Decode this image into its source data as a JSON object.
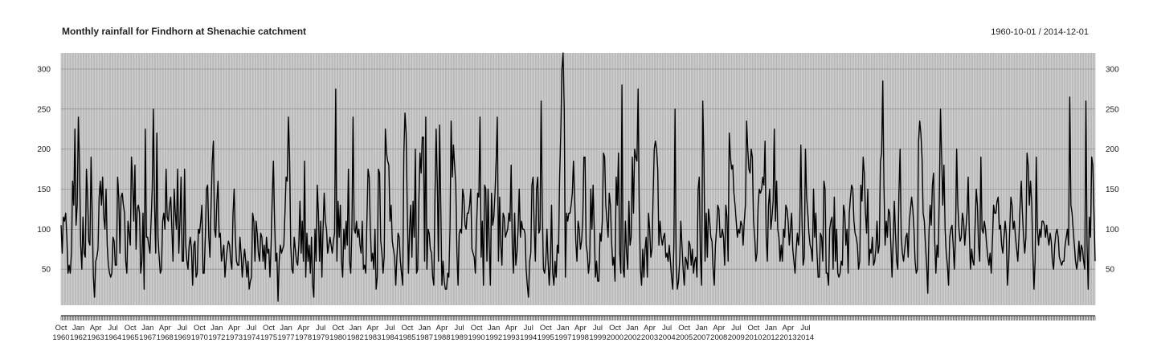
{
  "chart_data": {
    "type": "line",
    "title": "Monthly rainfall for Findhorn at Shenachie catchment",
    "date_range_label": "1960-10-01 / 2014-12-01",
    "xlabel": "",
    "ylabel": "",
    "x_start": "1960-10",
    "x_end": "2014-12",
    "ylim": [
      5,
      320
    ],
    "y_ticks": [
      50,
      100,
      150,
      200,
      250,
      300
    ],
    "x_ticks": [
      [
        "Oct",
        "1960"
      ],
      [
        "Jan",
        "1962"
      ],
      [
        "Apr",
        "1963"
      ],
      [
        "Jul",
        "1964"
      ],
      [
        "Oct",
        "1965"
      ],
      [
        "Jan",
        "1967"
      ],
      [
        "Apr",
        "1968"
      ],
      [
        "Jul",
        "1969"
      ],
      [
        "Oct",
        "1970"
      ],
      [
        "Jan",
        "1972"
      ],
      [
        "Apr",
        "1973"
      ],
      [
        "Jul",
        "1974"
      ],
      [
        "Oct",
        "1975"
      ],
      [
        "Jan",
        "1977"
      ],
      [
        "Apr",
        "1978"
      ],
      [
        "Jul",
        "1979"
      ],
      [
        "Oct",
        "1980"
      ],
      [
        "Jan",
        "1982"
      ],
      [
        "Apr",
        "1983"
      ],
      [
        "Jul",
        "1984"
      ],
      [
        "Oct",
        "1985"
      ],
      [
        "Jan",
        "1987"
      ],
      [
        "Apr",
        "1988"
      ],
      [
        "Jul",
        "1989"
      ],
      [
        "Oct",
        "1990"
      ],
      [
        "Jan",
        "1992"
      ],
      [
        "Apr",
        "1993"
      ],
      [
        "Jul",
        "1994"
      ],
      [
        "Oct",
        "1995"
      ],
      [
        "Jan",
        "1997"
      ],
      [
        "Apr",
        "1998"
      ],
      [
        "Jul",
        "1999"
      ],
      [
        "Oct",
        "2000"
      ],
      [
        "Jan",
        "2002"
      ],
      [
        "Apr",
        "2003"
      ],
      [
        "Jul",
        "2004"
      ],
      [
        "Oct",
        "2005"
      ],
      [
        "Jan",
        "2007"
      ],
      [
        "Apr",
        "2008"
      ],
      [
        "Jul",
        "2009"
      ],
      [
        "Oct",
        "2010"
      ],
      [
        "Jan",
        "2012"
      ],
      [
        "Apr",
        "2013"
      ],
      [
        "Jul",
        "2014"
      ]
    ],
    "grid": true,
    "series": [
      {
        "values": [
          105,
          70,
          115,
          110,
          120,
          90,
          45,
          55,
          45,
          70,
          160,
          130,
          225,
          105,
          130,
          240,
          180,
          80,
          50,
          115,
          70,
          65,
          175,
          140,
          85,
          80,
          190,
          120,
          40,
          15,
          60,
          65,
          75,
          140,
          160,
          130,
          165,
          115,
          100,
          150,
          80,
          55,
          45,
          40,
          45,
          90,
          85,
          55,
          55,
          165,
          140,
          70,
          140,
          145,
          130,
          120,
          60,
          45,
          110,
          95,
          80,
          190,
          160,
          110,
          180,
          75,
          125,
          130,
          120,
          45,
          60,
          120,
          25,
          225,
          90,
          90,
          80,
          70,
          110,
          150,
          250,
          130,
          70,
          220,
          90,
          65,
          45,
          50,
          110,
          120,
          100,
          175,
          115,
          110,
          130,
          140,
          100,
          60,
          150,
          120,
          100,
          175,
          70,
          110,
          165,
          60,
          60,
          175,
          80,
          60,
          50,
          80,
          90,
          75,
          30,
          80,
          85,
          40,
          45,
          100,
          95,
          110,
          130,
          45,
          45,
          90,
          150,
          155,
          90,
          65,
          130,
          185,
          210,
          100,
          90,
          135,
          160,
          90,
          95,
          60,
          70,
          80,
          40,
          60,
          75,
          85,
          80,
          60,
          50,
          120,
          150,
          90,
          60,
          55,
          55,
          90,
          70,
          40,
          60,
          75,
          60,
          40,
          60,
          25,
          35,
          40,
          120,
          110,
          60,
          110,
          95,
          70,
          60,
          95,
          90,
          60,
          80,
          50,
          90,
          70,
          75,
          40,
          80,
          140,
          185,
          110,
          60,
          70,
          10,
          60,
          80,
          70,
          75,
          80,
          120,
          165,
          160,
          240,
          190,
          80,
          50,
          45,
          90,
          75,
          60,
          55,
          80,
          135,
          70,
          110,
          60,
          185,
          40,
          95,
          60,
          80,
          45,
          90,
          30,
          15,
          100,
          60,
          155,
          120,
          60,
          110,
          40,
          100,
          145,
          110,
          100,
          70,
          80,
          90,
          80,
          70,
          85,
          95,
          275,
          60,
          135,
          90,
          130,
          60,
          40,
          100,
          75,
          110,
          80,
          175,
          60,
          45,
          100,
          240,
          100,
          95,
          110,
          90,
          100,
          80,
          70,
          110,
          50,
          55,
          45,
          110,
          175,
          165,
          100,
          60,
          70,
          50,
          100,
          25,
          40,
          175,
          170,
          85,
          70,
          45,
          65,
          225,
          195,
          185,
          180,
          110,
          130,
          85,
          75,
          65,
          30,
          65,
          95,
          90,
          60,
          45,
          30,
          195,
          245,
          220,
          125,
          45,
          100,
          130,
          65,
          135,
          90,
          200,
          45,
          50,
          135,
          195,
          170,
          215,
          215,
          60,
          240,
          50,
          100,
          95,
          75,
          70,
          40,
          30,
          145,
          225,
          160,
          60,
          230,
          130,
          30,
          60,
          35,
          25,
          25,
          45,
          40,
          100,
          235,
          165,
          205,
          180,
          155,
          70,
          30,
          95,
          100,
          95,
          150,
          140,
          105,
          100,
          120,
          120,
          130,
          150,
          75,
          70,
          65,
          45,
          105,
          145,
          140,
          240,
          65,
          110,
          30,
          155,
          150,
          60,
          150,
          80,
          30,
          145,
          105,
          115,
          145,
          185,
          240,
          60,
          140,
          80,
          55,
          120,
          115,
          90,
          95,
          100,
          120,
          110,
          180,
          80,
          45,
          120,
          55,
          70,
          100,
          150,
          90,
          110,
          100,
          100,
          95,
          50,
          30,
          15,
          60,
          70,
          155,
          165,
          100,
          60,
          150,
          165,
          95,
          100,
          260,
          120,
          50,
          45,
          60,
          100,
          60,
          30,
          60,
          130,
          45,
          30,
          60,
          40,
          80,
          70,
          165,
          220,
          300,
          320,
          250,
          40,
          120,
          110,
          120,
          120,
          130,
          145,
          185,
          140,
          85,
          60,
          110,
          100,
          75,
          85,
          110,
          190,
          190,
          80,
          70,
          45,
          60,
          150,
          100,
          155,
          100,
          40,
          60,
          35,
          35,
          95,
          85,
          110,
          195,
          190,
          130,
          110,
          90,
          145,
          130,
          85,
          55,
          65,
          35,
          165,
          130,
          195,
          70,
          45,
          280,
          50,
          40,
          110,
          70,
          50,
          135,
          80,
          90,
          190,
          120,
          200,
          190,
          185,
          275,
          125,
          50,
          30,
          75,
          40,
          75,
          90,
          40,
          120,
          100,
          65,
          75,
          140,
          200,
          210,
          200,
          175,
          80,
          110,
          90,
          80,
          90,
          95,
          65,
          70,
          60,
          80,
          60,
          40,
          25,
          80,
          250,
          55,
          25,
          35,
          60,
          110,
          80,
          50,
          30,
          65,
          60,
          50,
          85,
          80,
          55,
          75,
          45,
          60,
          65,
          40,
          150,
          165,
          65,
          30,
          260,
          190,
          60,
          120,
          65,
          125,
          110,
          90,
          85,
          50,
          30,
          80,
          100,
          130,
          125,
          90,
          90,
          100,
          90,
          55,
          130,
          115,
          60,
          220,
          190,
          175,
          180,
          145,
          130,
          110,
          90,
          100,
          95,
          110,
          105,
          80,
          110,
          130,
          235,
          200,
          175,
          170,
          200,
          190,
          110,
          90,
          60,
          70,
          130,
          150,
          145,
          150,
          165,
          155,
          210,
          90,
          60,
          130,
          150,
          100,
          115,
          135,
          225,
          110,
          160,
          100,
          90,
          60,
          80,
          60,
          100,
          90,
          130,
          125,
          110,
          80,
          100,
          120,
          75,
          60,
          45,
          75,
          95,
          80,
          100,
          205,
          110,
          55,
          65,
          200,
          140,
          120,
          95,
          80,
          75,
          60,
          150,
          90,
          120,
          70,
          40,
          40,
          95,
          90,
          60,
          160,
          150,
          45,
          45,
          30,
          100,
          110,
          115,
          50,
          140,
          60,
          100,
          45,
          40,
          45,
          60,
          55,
          130,
          120,
          80,
          100,
          45,
          120,
          140,
          155,
          150,
          110,
          95,
          90,
          80,
          50,
          60,
          155,
          135,
          190,
          170,
          120,
          95,
          150,
          55,
          75,
          70,
          90,
          55,
          60,
          75,
          110,
          70,
          80,
          185,
          195,
          285,
          155,
          80,
          110,
          90,
          125,
          120,
          80,
          40,
          85,
          135,
          95,
          60,
          50,
          145,
          200,
          90,
          70,
          60,
          75,
          90,
          95,
          65,
          110,
          125,
          140,
          125,
          100,
          60,
          45,
          50,
          210,
          235,
          220,
          190,
          120,
          110,
          80,
          55,
          20,
          95,
          130,
          105,
          155,
          170,
          85,
          45,
          80,
          65,
          140,
          250,
          190,
          130,
          180,
          100,
          70,
          55,
          30,
          90,
          100,
          105,
          80,
          50,
          90,
          200,
          130,
          100,
          85,
          90,
          120,
          110,
          80,
          100,
          120,
          165,
          95,
          50,
          75,
          60,
          55,
          105,
          150,
          130,
          80,
          60,
          190,
          100,
          95,
          110,
          100,
          80,
          65,
          55,
          70,
          45,
          85,
          130,
          120,
          120,
          135,
          140,
          100,
          105,
          80,
          70,
          90,
          110,
          95,
          30,
          55,
          100,
          140,
          130,
          100,
          110,
          90,
          75,
          60,
          90,
          130,
          160,
          120,
          90,
          70,
          90,
          195,
          180,
          130,
          160,
          135,
          70,
          25,
          60,
          190,
          100,
          80,
          100,
          90,
          110,
          110,
          105,
          90,
          105,
          90,
          80,
          95,
          85,
          60,
          50,
          80,
          95,
          100,
          90,
          65,
          60,
          55,
          60,
          60,
          80,
          90,
          100,
          80,
          265,
          130,
          120,
          100,
          80,
          60,
          50,
          60,
          85,
          60,
          80,
          75,
          60,
          50,
          260,
          80,
          25,
          115,
          90,
          190,
          180,
          120,
          60
        ]
      }
    ]
  }
}
